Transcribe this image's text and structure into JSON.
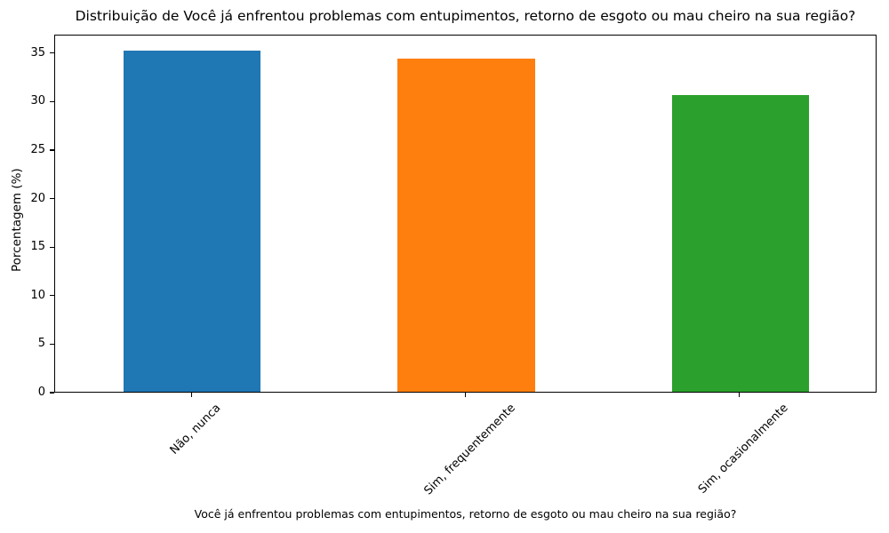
{
  "chart_data": {
    "type": "bar",
    "title": "Distribuição de Você já enfrentou problemas com entupimentos, retorno de esgoto ou mau cheiro na sua região?",
    "xlabel": "Você já enfrentou problemas com entupimentos, retorno de esgoto ou mau cheiro na sua região?",
    "ylabel": "Porcentagem (%)",
    "categories": [
      "Não, nunca",
      "Sim, frequentemente",
      "Sim, ocasionalmente"
    ],
    "values": [
      35.2,
      34.3,
      30.6
    ],
    "bar_colors": [
      "#1f77b4",
      "#ff7f0e",
      "#2ca02c"
    ],
    "yticks": [
      0,
      5,
      10,
      15,
      20,
      25,
      30,
      35
    ],
    "ylim": [
      0,
      36.9
    ],
    "grid": false,
    "legend": "none",
    "xtick_rotation": 45
  }
}
